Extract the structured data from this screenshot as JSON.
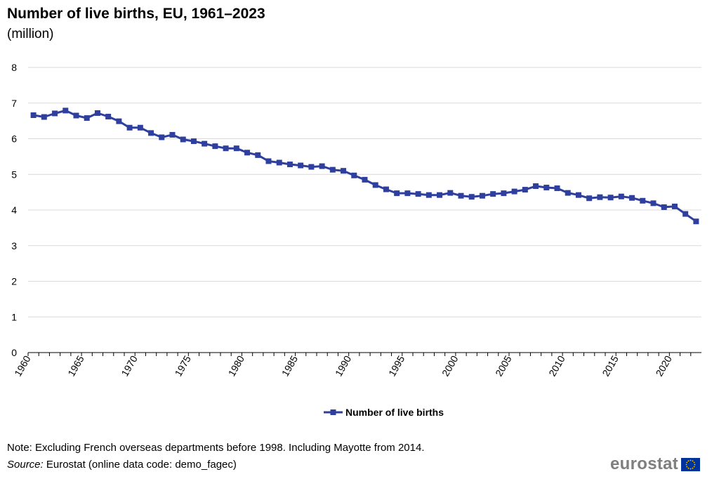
{
  "header": {
    "title": "Number of live births, EU, 1961–2023",
    "subtitle": "(million)"
  },
  "footer": {
    "note": "Note: Excluding French overseas departments before 1998. Including Mayotte from 2014.",
    "source_label": "Source:",
    "source_text": "Eurostat (online data code: demo_fagec)",
    "logo_text": "eurostat"
  },
  "colors": {
    "series": "#2e3f9e",
    "grid": "#d9d9d9",
    "axis": "#000000",
    "logo_grey": "#7f7f7f",
    "flag_blue": "#003399",
    "flag_star": "#ffcc00"
  },
  "chart_data": {
    "type": "line",
    "title": "Number of live births, EU, 1961–2023",
    "subtitle": "(million)",
    "xlabel": "",
    "ylabel": "",
    "ylim": [
      0,
      8
    ],
    "yticks": [
      0,
      1,
      2,
      3,
      4,
      5,
      6,
      7,
      8
    ],
    "xlim": [
      1960,
      2022
    ],
    "xticks": [
      1960,
      1965,
      1970,
      1975,
      1980,
      1985,
      1990,
      1995,
      2000,
      2005,
      2010,
      2015,
      2020
    ],
    "grid": true,
    "legend_position": "bottom",
    "x": [
      1960,
      1961,
      1962,
      1963,
      1964,
      1965,
      1966,
      1967,
      1968,
      1969,
      1970,
      1971,
      1972,
      1973,
      1974,
      1975,
      1976,
      1977,
      1978,
      1979,
      1980,
      1981,
      1982,
      1983,
      1984,
      1985,
      1986,
      1987,
      1988,
      1989,
      1990,
      1991,
      1992,
      1993,
      1994,
      1995,
      1996,
      1997,
      1998,
      1999,
      2000,
      2001,
      2002,
      2003,
      2004,
      2005,
      2006,
      2007,
      2008,
      2009,
      2010,
      2011,
      2012,
      2013,
      2014,
      2015,
      2016,
      2017,
      2018,
      2019,
      2020,
      2021,
      2022
    ],
    "series": [
      {
        "name": "Number of live births",
        "marker": "square",
        "values": [
          6.66,
          6.61,
          6.71,
          6.79,
          6.65,
          6.58,
          6.72,
          6.62,
          6.49,
          6.31,
          6.31,
          6.16,
          6.04,
          6.11,
          5.98,
          5.93,
          5.86,
          5.79,
          5.73,
          5.73,
          5.61,
          5.54,
          5.37,
          5.33,
          5.28,
          5.25,
          5.21,
          5.23,
          5.13,
          5.1,
          4.97,
          4.85,
          4.7,
          4.58,
          4.47,
          4.47,
          4.45,
          4.42,
          4.42,
          4.48,
          4.4,
          4.37,
          4.4,
          4.45,
          4.47,
          4.52,
          4.57,
          4.67,
          4.63,
          4.61,
          4.48,
          4.42,
          4.33,
          4.36,
          4.35,
          4.38,
          4.34,
          4.26,
          4.19,
          4.08,
          4.1,
          3.89,
          3.68
        ]
      }
    ]
  }
}
